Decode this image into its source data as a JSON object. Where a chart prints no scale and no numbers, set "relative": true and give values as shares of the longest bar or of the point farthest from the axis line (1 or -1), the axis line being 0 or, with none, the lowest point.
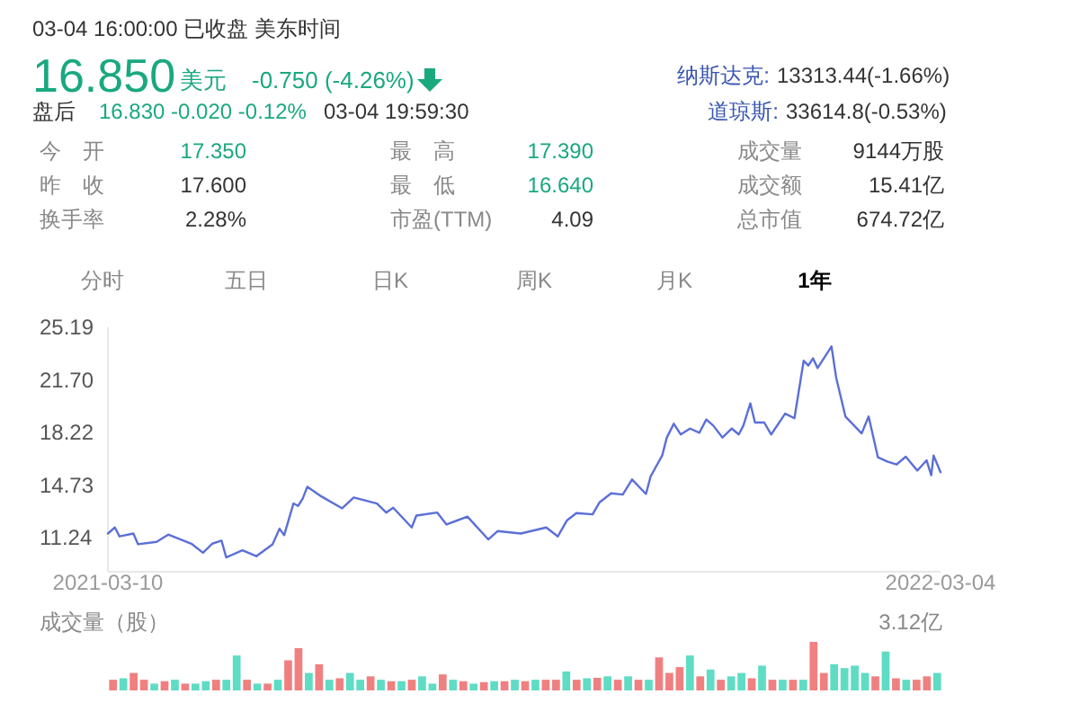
{
  "chart_data": [
    {
      "type": "other",
      "annotations": [
        "03-04 16:00:00  已收盘  美东时间",
        "16.850",
        "美元",
        "-0.750 (-4.26%)",
        "纳斯达克:",
        "13313.44(-1.66%)",
        "盘后",
        "16.830  -0.020  -0.12%",
        "03-04 19:59:30",
        "道琼斯:",
        "33614.8(-0.53%)",
        "今　开",
        "17.350",
        "最　高",
        "17.390",
        "成交量",
        "9144万股",
        "昨　收",
        "17.600",
        "最　低",
        "16.640",
        "成交额",
        "15.41亿",
        "换手率",
        "2.28%",
        "市盈(TTM)",
        "4.09",
        "总市值",
        "674.72亿",
        "分时",
        "五日",
        "日K",
        "周K",
        "月K",
        "1年"
      ]
    },
    {
      "type": "line",
      "color": "#5b6fd6",
      "grid": false,
      "marker": "none",
      "line_style": "solid",
      "x": [
        "2021-03-10",
        "2021-03-13",
        "2021-03-15",
        "2021-03-21",
        "2021-03-23",
        "2021-03-31",
        "2021-04-05",
        "2021-04-15",
        "2021-04-20",
        "2021-04-24",
        "2021-04-28",
        "2021-04-30",
        "2021-05-07",
        "2021-05-13",
        "2021-05-20",
        "2021-05-23",
        "2021-05-25",
        "2021-05-29",
        "2021-05-31",
        "2021-06-02",
        "2021-06-04",
        "2021-06-10",
        "2021-06-19",
        "2021-06-24",
        "2021-07-04",
        "2021-07-08",
        "2021-07-11",
        "2021-07-19",
        "2021-07-21",
        "2021-07-30",
        "2021-08-03",
        "2021-08-12",
        "2021-08-21",
        "2021-08-25",
        "2021-09-04",
        "2021-09-15",
        "2021-09-20",
        "2021-09-24",
        "2021-09-28",
        "2021-10-05",
        "2021-10-08",
        "2021-10-13",
        "2021-10-18",
        "2021-10-22",
        "2021-10-28",
        "2021-10-30",
        "2021-11-04",
        "2021-11-06",
        "2021-11-09",
        "2021-11-12",
        "2021-11-16",
        "2021-11-20",
        "2021-11-23",
        "2021-11-26",
        "2021-11-30",
        "2021-12-04",
        "2021-12-07",
        "2021-12-09",
        "2021-12-12",
        "2021-12-14",
        "2021-12-18",
        "2021-12-21",
        "2021-12-27",
        "2021-12-31",
        "2022-01-04",
        "2022-01-06",
        "2022-01-08",
        "2022-01-10",
        "2022-01-16",
        "2022-01-18",
        "2022-01-22",
        "2022-01-29",
        "2022-02-01",
        "2022-02-05",
        "2022-02-09",
        "2022-02-13",
        "2022-02-17",
        "2022-02-22",
        "2022-02-26",
        "2022-02-28",
        "2022-03-01",
        "2022-03-04"
      ],
      "values": [
        11.53,
        11.93,
        11.34,
        11.53,
        10.82,
        10.98,
        11.46,
        10.86,
        10.26,
        10.86,
        11.06,
        9.95,
        10.42,
        10.03,
        10.82,
        11.85,
        11.42,
        13.52,
        13.36,
        13.84,
        14.63,
        13.99,
        13.2,
        13.92,
        13.52,
        12.92,
        13.24,
        11.93,
        12.72,
        12.92,
        12.13,
        12.65,
        11.14,
        11.69,
        11.53,
        11.93,
        11.34,
        12.41,
        12.88,
        12.8,
        13.6,
        14.19,
        14.11,
        15.11,
        14.15,
        15.31,
        16.7,
        17.89,
        18.8,
        18.09,
        18.48,
        18.2,
        19.08,
        18.68,
        17.89,
        18.48,
        18.09,
        18.68,
        20.15,
        18.88,
        18.88,
        18.09,
        19.47,
        19.16,
        22.97,
        22.65,
        23.13,
        22.49,
        23.92,
        21.86,
        19.28,
        18.16,
        19.28,
        16.58,
        16.3,
        16.1,
        16.62,
        15.7,
        16.38,
        15.39,
        16.7,
        15.59
      ],
      "xlim": [
        "2021-03-10",
        "2022-03-04"
      ],
      "xticks": [
        {
          "value": "2021-03-10",
          "label": "2021-03-10"
        },
        {
          "value": "2022-03-04",
          "label": "2022-03-04"
        }
      ],
      "ylim": [
        9,
        25.19
      ],
      "yticks": [
        25.19,
        {
          "value": 21.7,
          "label": "21.70"
        },
        18.22,
        14.73,
        11.24
      ]
    },
    {
      "type": "bar",
      "relative": true,
      "ylabel": "成交量（股）",
      "annotations": [
        "3.12亿"
      ],
      "categories": [
        null,
        null,
        null,
        null,
        null,
        null,
        null,
        null,
        null,
        null,
        null,
        null,
        null,
        null,
        null,
        null,
        null,
        null,
        null,
        null,
        null,
        null,
        null,
        null,
        null,
        null,
        null,
        null,
        null,
        null,
        null,
        null,
        null,
        null,
        null,
        null,
        null,
        null,
        null,
        null,
        null,
        null,
        null,
        null,
        null,
        null,
        null,
        null,
        null,
        null,
        null,
        null,
        null,
        null,
        null,
        null,
        null,
        null,
        null,
        null,
        null,
        null,
        null,
        null,
        null,
        null,
        null,
        null,
        null,
        null,
        null,
        null,
        null,
        null,
        null,
        null,
        null,
        null,
        null,
        null,
        null
      ],
      "values": [
        0.22,
        0.25,
        0.36,
        0.22,
        0.14,
        0.19,
        0.22,
        0.14,
        0.14,
        0.19,
        0.22,
        0.22,
        0.72,
        0.22,
        0.14,
        0.14,
        0.22,
        0.62,
        0.87,
        0.36,
        0.54,
        0.22,
        0.25,
        0.36,
        0.22,
        0.29,
        0.22,
        0.19,
        0.19,
        0.22,
        0.29,
        0.14,
        0.33,
        0.22,
        0.19,
        0.14,
        0.17,
        0.19,
        0.19,
        0.22,
        0.19,
        0.22,
        0.22,
        0.22,
        0.39,
        0.22,
        0.25,
        0.26,
        0.29,
        0.22,
        0.29,
        0.22,
        0.22,
        0.68,
        0.36,
        0.48,
        0.72,
        0.29,
        0.43,
        0.22,
        0.29,
        0.36,
        0.25,
        0.51,
        0.22,
        0.22,
        0.22,
        0.22,
        1,
        0.36,
        0.54,
        0.46,
        0.51,
        0.36,
        0.29,
        0.8,
        0.25,
        0.22,
        0.22,
        0.29,
        0.36
      ],
      "colors": [
        "#f08080",
        "#5fdcc4",
        "#f08080",
        "#f08080",
        "#5fdcc4",
        "#f08080",
        "#5fdcc4",
        "#f08080",
        "#5fdcc4",
        "#5fdcc4",
        "#f08080",
        "#5fdcc4",
        "#5fdcc4",
        "#f08080",
        "#5fdcc4",
        "#f08080",
        "#5fdcc4",
        "#f08080",
        "#f08080",
        "#5fdcc4",
        "#f08080",
        "#5fdcc4",
        "#f08080",
        "#5fdcc4",
        "#5fdcc4",
        "#f08080",
        "#5fdcc4",
        "#f08080",
        "#5fdcc4",
        "#f08080",
        "#5fdcc4",
        "#5fdcc4",
        "#f08080",
        "#5fdcc4",
        "#f08080",
        "#5fdcc4",
        "#f08080",
        "#5fdcc4",
        "#f08080",
        "#5fdcc4",
        "#f08080",
        "#5fdcc4",
        "#f08080",
        "#f08080",
        "#5fdcc4",
        "#f08080",
        "#5fdcc4",
        "#f08080",
        "#5fdcc4",
        "#f08080",
        "#5fdcc4",
        "#f08080",
        "#5fdcc4",
        "#f08080",
        "#f08080",
        "#f08080",
        "#5fdcc4",
        "#f08080",
        "#5fdcc4",
        "#f08080",
        "#5fdcc4",
        "#5fdcc4",
        "#f08080",
        "#5fdcc4",
        "#f08080",
        "#5fdcc4",
        "#f08080",
        "#5fdcc4",
        "#f08080",
        "#f08080",
        "#5fdcc4",
        "#5fdcc4",
        "#5fdcc4",
        "#5fdcc4",
        "#f08080",
        "#5fdcc4",
        "#f08080",
        "#5fdcc4",
        "#f08080",
        "#f08080",
        "#5fdcc4"
      ]
    }
  ]
}
